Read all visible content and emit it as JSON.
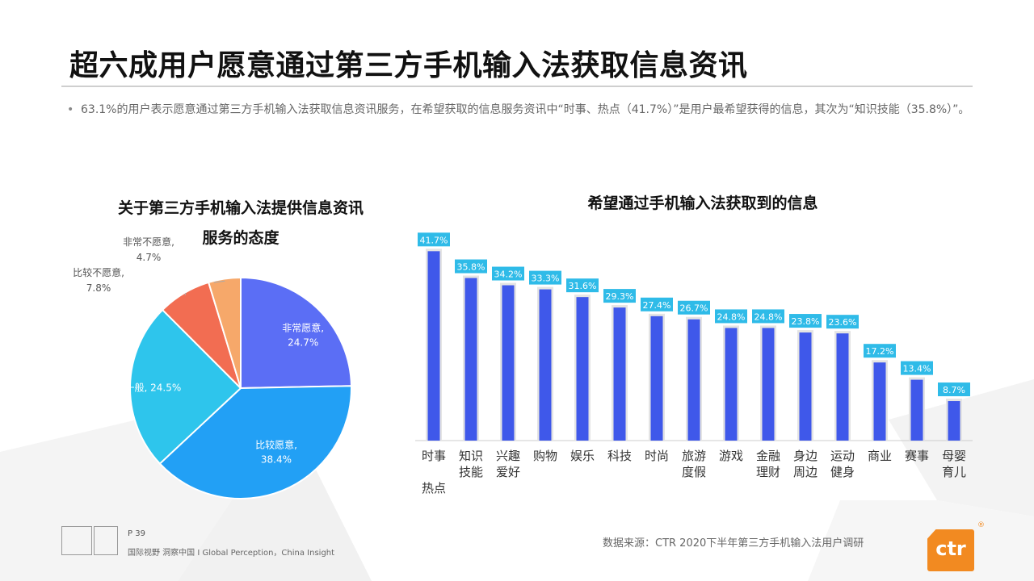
{
  "title": "超六成用户愿意通过第三方手机输入法获取信息资讯",
  "summary": "63.1%的用户表示愿意通过第三方手机输入法获取信息资讯服务，在希望获取的信息服务资讯中“时事、热点（41.7%）”是用户最希望获得的信息，其次为“知识技能（35.8%）”。",
  "pie_title_line1": "关于第三方手机输入法提供信息资讯",
  "pie_title_line2": "服务的态度",
  "bar_title": "希望通过手机输入法获取到的信息",
  "footer": {
    "page": "P 39",
    "tagline": "国际视野  洞察中国 I  Global Perception，China Insight",
    "source": "数据来源：CTR 2020下半年第三方手机输入法用户调研",
    "logo_text": "ctr",
    "logo_mark": "®"
  },
  "colors": {
    "very_willing": "#5b6ef5",
    "willing": "#22a0f5",
    "neutral": "#2ec5ec",
    "unwilling": "#f26d52",
    "very_unwilling": "#f6a86a",
    "bar": "#3f58ea",
    "bar_label_bg": "#2fbbe8"
  },
  "chart_data": [
    {
      "type": "pie",
      "title": "关于第三方手机输入法提供信息资讯服务的态度",
      "slices": [
        {
          "name": "非常愿意",
          "value": 24.7,
          "label": "24.7%",
          "color": "#5b6ef5"
        },
        {
          "name": "比较愿意",
          "value": 38.4,
          "label": "38.4%",
          "color": "#22a0f5"
        },
        {
          "name": "一般",
          "value": 24.5,
          "label": "24.5%",
          "color": "#2ec5ec"
        },
        {
          "name": "比较不愿意",
          "value": 7.8,
          "label": "7.8%",
          "color": "#f26d52"
        },
        {
          "name": "非常不愿意",
          "value": 4.7,
          "label": "4.7%",
          "color": "#f6a86a"
        }
      ]
    },
    {
      "type": "bar",
      "title": "希望通过手机输入法获取到的信息",
      "categories": [
        "时事\n\n热点",
        "知识\n技能",
        "兴趣\n爱好",
        "购物",
        "娱乐",
        "科技",
        "时尚",
        "旅游\n度假",
        "游戏",
        "金融\n理财",
        "身边\n周边",
        "运动\n健身",
        "商业",
        "赛事",
        "母婴\n育儿"
      ],
      "values": [
        41.7,
        35.8,
        34.2,
        33.3,
        31.6,
        29.3,
        27.4,
        26.7,
        24.8,
        24.8,
        23.8,
        23.6,
        17.2,
        13.4,
        8.7
      ],
      "labels": [
        "41.7%",
        "35.8%",
        "34.2%",
        "33.3%",
        "31.6%",
        "29.3%",
        "27.4%",
        "26.7%",
        "24.8%",
        "24.8%",
        "23.8%",
        "23.6%",
        "17.2%",
        "13.4%",
        "8.7%"
      ],
      "ylim": [
        0,
        43
      ],
      "grid": false
    }
  ]
}
